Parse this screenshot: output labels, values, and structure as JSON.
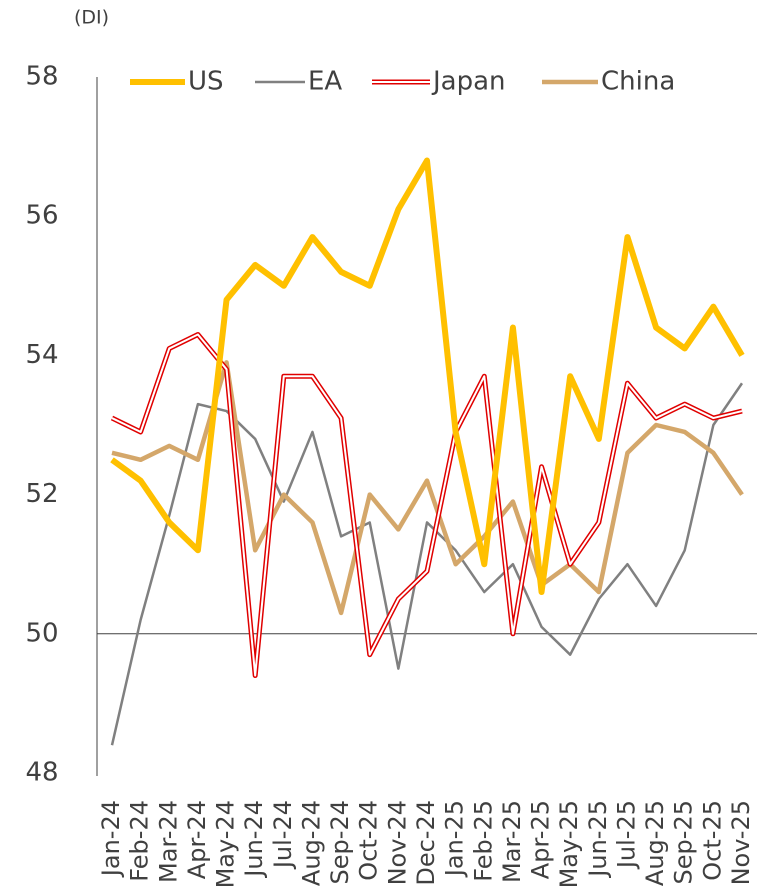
{
  "chart_data": {
    "type": "line",
    "unit_label": "(DI)",
    "categories": [
      "Jan-24",
      "Feb-24",
      "Mar-24",
      "Apr-24",
      "May-24",
      "Jun-24",
      "Jul-24",
      "Aug-24",
      "Sep-24",
      "Oct-24",
      "Nov-24",
      "Dec-24",
      "Jan-25",
      "Feb-25",
      "Mar-25",
      "Apr-25",
      "May-25",
      "Jun-25",
      "Jul-25",
      "Aug-25",
      "Sep-25",
      "Oct-25",
      "Nov-25"
    ],
    "series": [
      {
        "name": "US",
        "color": "#ffc000",
        "values": [
          52.5,
          52.2,
          51.6,
          51.2,
          54.8,
          55.3,
          55.0,
          55.7,
          55.2,
          55.0,
          56.1,
          56.8,
          52.9,
          51.0,
          54.4,
          50.6,
          53.7,
          52.8,
          55.7,
          54.4,
          54.1,
          54.7,
          54.0
        ]
      },
      {
        "name": "EA",
        "color": "#808080",
        "values": [
          48.4,
          50.2,
          51.7,
          53.3,
          53.2,
          52.8,
          51.9,
          52.9,
          51.4,
          51.6,
          49.5,
          51.6,
          51.2,
          50.6,
          51.0,
          50.1,
          49.7,
          50.5,
          51.0,
          50.4,
          51.2,
          53.0,
          53.6
        ]
      },
      {
        "name": "Japan",
        "color": "#e00000",
        "values": [
          53.1,
          52.9,
          54.1,
          54.3,
          53.8,
          49.4,
          53.7,
          53.7,
          53.1,
          49.7,
          50.5,
          50.9,
          52.9,
          53.7,
          50.0,
          52.4,
          51.0,
          51.6,
          53.6,
          53.1,
          53.3,
          53.1,
          53.2
        ]
      },
      {
        "name": "China",
        "color": "#d4a76a",
        "values": [
          52.6,
          52.5,
          52.7,
          52.5,
          53.9,
          51.2,
          52.0,
          51.6,
          50.3,
          52.0,
          51.5,
          52.2,
          51.0,
          51.4,
          51.9,
          50.7,
          51.0,
          50.6,
          52.6,
          53.0,
          52.9,
          52.6,
          52.0
        ]
      }
    ],
    "ylim": [
      48,
      58
    ],
    "yticks": [
      48,
      50,
      52,
      54,
      56,
      58
    ],
    "hline": 50,
    "legend": "top"
  }
}
